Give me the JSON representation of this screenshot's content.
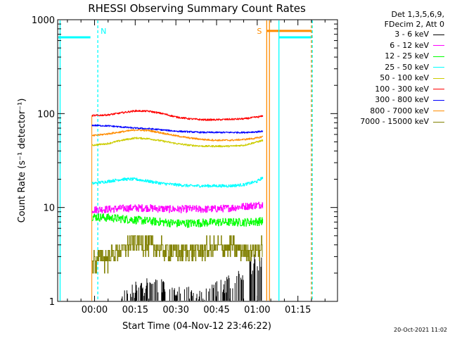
{
  "chart_data": {
    "type": "line",
    "title": "RHESSI Observing Summary Count Rates",
    "xlabel": "Start Time (04-Nov-12 23:46:22)",
    "ylabel": "Count Rate (s⁻¹ detector⁻¹)",
    "x_unit": "minutes after 00:00",
    "xlim": [
      -13.6,
      89.6
    ],
    "ylim": [
      1,
      1000
    ],
    "y_scale": "log",
    "x_ticks": [
      {
        "value": 0,
        "label": "00:00"
      },
      {
        "value": 15,
        "label": "00:15"
      },
      {
        "value": 30,
        "label": "00:30"
      },
      {
        "value": 45,
        "label": "00:45"
      },
      {
        "value": 60,
        "label": "01:00"
      },
      {
        "value": 75,
        "label": "01:15"
      }
    ],
    "y_ticks": [
      {
        "value": 1,
        "label": "1"
      },
      {
        "value": 10,
        "label": "10"
      },
      {
        "value": 100,
        "label": "100"
      },
      {
        "value": 1000,
        "label": "1000"
      }
    ],
    "legend_header": [
      "Det 1,3,5,6,9,",
      "FDecim 2, Att 0"
    ],
    "legend_position": "right",
    "series": [
      {
        "name": "3 - 6 keV",
        "color": "#000000",
        "x": [
          10,
          20,
          30,
          40,
          50,
          55,
          58,
          60,
          62
        ],
        "values": [
          1,
          1.5,
          1.2,
          1,
          1.6,
          2,
          2.4,
          2.6,
          2.7
        ]
      },
      {
        "name": "6 - 12 keV",
        "color": "#ff00ff",
        "x": [
          -1,
          5,
          10,
          15,
          20,
          25,
          30,
          35,
          40,
          45,
          50,
          55,
          60,
          62
        ],
        "values": [
          9.5,
          9.6,
          9.8,
          9.9,
          9.9,
          9.7,
          9.6,
          9.7,
          9.6,
          9.7,
          9.9,
          10.3,
          10.6,
          10.8
        ]
      },
      {
        "name": "12 - 25 keV",
        "color": "#00ff00",
        "x": [
          -1,
          5,
          10,
          15,
          20,
          25,
          30,
          35,
          40,
          45,
          50,
          55,
          60,
          62
        ],
        "values": [
          8.0,
          7.8,
          7.6,
          7.4,
          7.2,
          7.0,
          6.8,
          6.8,
          6.9,
          7.0,
          7.0,
          7.0,
          7.1,
          7.2
        ]
      },
      {
        "name": "25 - 50 keV",
        "color": "#00ffff",
        "x": [
          -1,
          5,
          10,
          15,
          20,
          25,
          30,
          35,
          40,
          45,
          50,
          55,
          60,
          62
        ],
        "values": [
          18,
          19,
          20,
          20,
          19,
          18,
          17.5,
          17,
          17,
          17,
          17,
          17.5,
          19,
          21
        ]
      },
      {
        "name": "50 - 100 keV",
        "color": "#cccc00",
        "x": [
          -1,
          5,
          10,
          15,
          20,
          25,
          30,
          35,
          40,
          45,
          50,
          55,
          60,
          62
        ],
        "values": [
          46,
          48,
          52,
          55,
          54,
          51,
          48,
          46,
          45,
          45,
          45,
          46,
          50,
          52
        ]
      },
      {
        "name": "100 - 300 keV",
        "color": "#ff0000",
        "x": [
          -1,
          5,
          10,
          15,
          20,
          25,
          30,
          35,
          40,
          45,
          50,
          55,
          60,
          62
        ],
        "values": [
          95,
          97,
          102,
          107,
          106,
          100,
          92,
          88,
          86,
          86,
          87,
          88,
          92,
          94
        ]
      },
      {
        "name": "300 - 800 keV",
        "color": "#0000ff",
        "x": [
          -1,
          5,
          10,
          15,
          20,
          25,
          30,
          35,
          40,
          45,
          50,
          55,
          60,
          62
        ],
        "values": [
          75,
          74,
          72,
          70,
          69,
          67,
          65,
          64,
          63,
          63,
          63,
          63,
          64,
          65
        ]
      },
      {
        "name": "800 - 7000 keV",
        "color": "#ff8c00",
        "x": [
          -1,
          5,
          10,
          15,
          20,
          25,
          30,
          35,
          40,
          45,
          50,
          55,
          60,
          62
        ],
        "values": [
          58,
          61,
          64,
          67,
          66,
          62,
          58,
          55,
          53,
          52,
          52,
          53,
          55,
          57
        ]
      },
      {
        "name": "7000 - 15000 keV",
        "color": "#808000",
        "x": [
          -1,
          5,
          10,
          15,
          20,
          25,
          30,
          35,
          40,
          45,
          50,
          55,
          60,
          62
        ],
        "values": [
          2.7,
          3.0,
          3.6,
          4.4,
          4.0,
          3.6,
          3.4,
          3.4,
          3.6,
          3.8,
          3.8,
          3.6,
          3.6,
          3.7
        ]
      }
    ],
    "annotations": [
      {
        "label": "N",
        "color": "#00ffff",
        "x": 1.2,
        "type": "night-marker"
      },
      {
        "label": "S",
        "color": "#ff8c00",
        "x": 63.5,
        "type": "saa-marker"
      }
    ],
    "background_segments": [
      {
        "color": "#00ffff",
        "x_start": -13.6,
        "x_end": -1.5,
        "level": 650
      },
      {
        "color": "#ff8c00",
        "x_start": 63.5,
        "x_end": 80,
        "level": 760
      },
      {
        "color": "#00ffff",
        "x_start": 68,
        "x_end": 80,
        "level": 650
      }
    ]
  },
  "timestamp": "20-Oct-2021 11:02"
}
